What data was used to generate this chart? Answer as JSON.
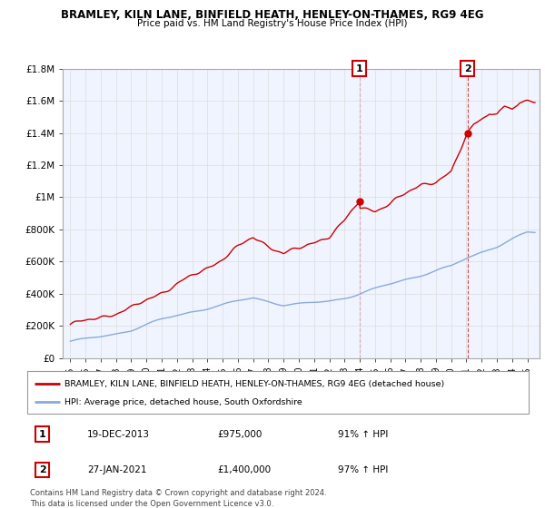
{
  "title": "BRAMLEY, KILN LANE, BINFIELD HEATH, HENLEY-ON-THAMES, RG9 4EG",
  "subtitle": "Price paid vs. HM Land Registry's House Price Index (HPI)",
  "ylim": [
    0,
    1800000
  ],
  "yticks": [
    0,
    200000,
    400000,
    600000,
    800000,
    1000000,
    1200000,
    1400000,
    1600000,
    1800000
  ],
  "ytick_labels": [
    "£0",
    "£200K",
    "£400K",
    "£600K",
    "£800K",
    "£1M",
    "£1.2M",
    "£1.4M",
    "£1.6M",
    "£1.8M"
  ],
  "xlim_start": 1994.5,
  "xlim_end": 2025.8,
  "xticks": [
    1995,
    1996,
    1997,
    1998,
    1999,
    2000,
    2001,
    2002,
    2003,
    2004,
    2005,
    2006,
    2007,
    2008,
    2009,
    2010,
    2011,
    2012,
    2013,
    2014,
    2015,
    2016,
    2017,
    2018,
    2019,
    2020,
    2021,
    2022,
    2023,
    2024,
    2025
  ],
  "red_line_color": "#cc0000",
  "blue_line_color": "#88aadd",
  "marker1_x": 2013.97,
  "marker1_y": 975000,
  "marker1_label": "1",
  "marker2_x": 2021.07,
  "marker2_y": 1400000,
  "marker2_label": "2",
  "legend_red_label": "BRAMLEY, KILN LANE, BINFIELD HEATH, HENLEY-ON-THAMES, RG9 4EG (detached house)",
  "legend_blue_label": "HPI: Average price, detached house, South Oxfordshire",
  "table_row1": [
    "1",
    "19-DEC-2013",
    "£975,000",
    "91% ↑ HPI"
  ],
  "table_row2": [
    "2",
    "27-JAN-2021",
    "£1,400,000",
    "97% ↑ HPI"
  ],
  "footer": "Contains HM Land Registry data © Crown copyright and database right 2024.\nThis data is licensed under the Open Government Licence v3.0.",
  "background_color": "#ffffff",
  "grid_color": "#dddddd",
  "chart_bg": "#f0f4ff"
}
